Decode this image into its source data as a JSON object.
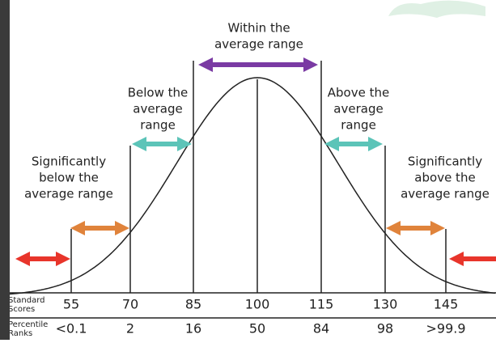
{
  "ranges": [
    {
      "lines": [
        "Within the",
        "average range"
      ]
    },
    {
      "lines": [
        "Below the",
        "average",
        "range"
      ]
    },
    {
      "lines": [
        "Above the",
        "average",
        "range"
      ]
    },
    {
      "lines": [
        "Significantly",
        "below the",
        "average range"
      ]
    },
    {
      "lines": [
        "Significantly",
        "above the",
        "average range"
      ]
    }
  ],
  "rows": [
    {
      "label": [
        "Standard",
        "Scores"
      ],
      "values": [
        "55",
        "70",
        "85",
        "100",
        "115",
        "130",
        "145"
      ]
    },
    {
      "label": [
        "Percentile",
        "Ranks"
      ],
      "values": [
        "<0.1",
        "2",
        "16",
        "50",
        "84",
        "98",
        ">99.9"
      ]
    }
  ]
}
